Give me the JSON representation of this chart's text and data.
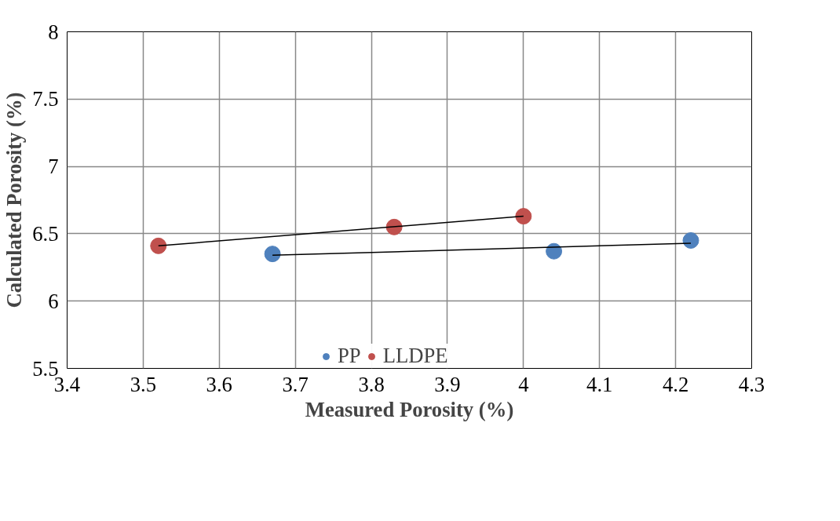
{
  "chart_data": {
    "type": "scatter",
    "xlabel": "Measured Porosity (%)",
    "ylabel": "Calculated Porosity (%)",
    "xlim": [
      3.4,
      4.3
    ],
    "xticks": [
      3.4,
      3.5,
      3.6,
      3.7,
      3.8,
      3.9,
      4,
      4.1,
      4.2,
      4.3
    ],
    "ylim": [
      5.5,
      8
    ],
    "yticks": [
      5.5,
      6,
      6.5,
      7,
      7.5,
      8
    ],
    "grid": true,
    "legend": "bottom",
    "marker": "circle",
    "series": [
      {
        "name": "PP",
        "color": "#4f81bd",
        "x": [
          3.67,
          4.04,
          4.22
        ],
        "values": [
          6.35,
          6.37,
          6.45
        ]
      },
      {
        "name": "LLDPE",
        "color": "#c0504d",
        "x": [
          3.52,
          3.83,
          4.0
        ],
        "values": [
          6.41,
          6.55,
          6.63
        ]
      },
      {
        "type": "line",
        "marker": "none",
        "color": "#000000",
        "x": [
          3.67,
          4.22
        ],
        "values": [
          6.34,
          6.43
        ]
      },
      {
        "type": "line",
        "marker": "none",
        "color": "#000000",
        "x": [
          3.52,
          4.0
        ],
        "values": [
          6.41,
          6.63
        ]
      }
    ]
  }
}
